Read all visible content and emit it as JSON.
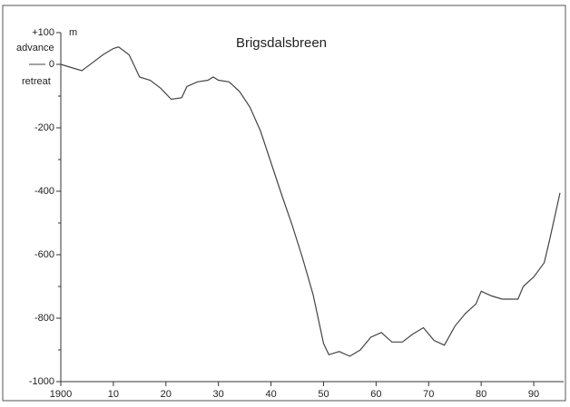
{
  "chart_data": {
    "type": "line",
    "title": "Brigsdalsbreen",
    "y_unit": "m",
    "annotations": [
      "advance",
      "retreat"
    ],
    "x": [
      1900,
      1902,
      1904,
      1906,
      1908,
      1910,
      1911,
      1913,
      1915,
      1917,
      1919,
      1921,
      1923,
      1924,
      1926,
      1928,
      1929,
      1930,
      1932,
      1934,
      1936,
      1938,
      1940,
      1942,
      1944,
      1946,
      1948,
      1950,
      1951,
      1953,
      1955,
      1957,
      1959,
      1961,
      1963,
      1965,
      1967,
      1969,
      1971,
      1973,
      1975,
      1977,
      1979,
      1980,
      1982,
      1984,
      1986,
      1987,
      1988,
      1990,
      1992,
      1993,
      1995
    ],
    "series": [
      {
        "name": "Brigsdalsbreen",
        "color": "#444444",
        "values": [
          0,
          -10,
          -20,
          5,
          30,
          50,
          55,
          30,
          -40,
          -50,
          -75,
          -110,
          -105,
          -70,
          -55,
          -50,
          -40,
          -50,
          -55,
          -85,
          -135,
          -210,
          -310,
          -410,
          -505,
          -610,
          -725,
          -880,
          -915,
          -905,
          -920,
          -900,
          -860,
          -845,
          -875,
          -875,
          -850,
          -830,
          -870,
          -885,
          -825,
          -785,
          -755,
          -715,
          -730,
          -740,
          -740,
          -740,
          -700,
          -670,
          -625,
          -555,
          -405
        ]
      }
    ],
    "xlim": [
      1900,
      1995
    ],
    "xticks": [
      1900,
      {
        "value": 1910,
        "label": "10"
      },
      {
        "value": 1920,
        "label": "20"
      },
      {
        "value": 1930,
        "label": "30"
      },
      {
        "value": 1940,
        "label": "40"
      },
      {
        "value": 1950,
        "label": "50"
      },
      {
        "value": 1960,
        "label": "60"
      },
      {
        "value": 1970,
        "label": "70"
      },
      {
        "value": 1980,
        "label": "80"
      },
      {
        "value": 1990,
        "label": "90"
      }
    ],
    "ylim": [
      -1000,
      100
    ],
    "yticks": [
      {
        "value": 100,
        "label": "+100"
      },
      0,
      -200,
      -400,
      -600,
      -800,
      -1000
    ],
    "yticks_minor": [
      -100,
      -300,
      -500,
      -700,
      -900
    ]
  }
}
